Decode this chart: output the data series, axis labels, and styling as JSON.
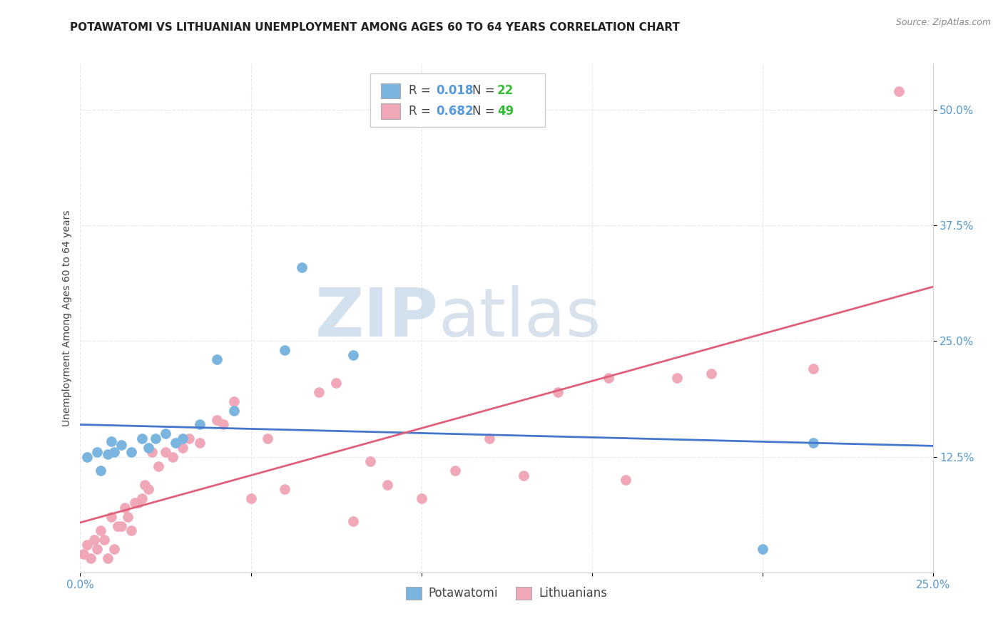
{
  "title": "POTAWATOMI VS LITHUANIAN UNEMPLOYMENT AMONG AGES 60 TO 64 YEARS CORRELATION CHART",
  "source": "Source: ZipAtlas.com",
  "ylabel": "Unemployment Among Ages 60 to 64 years",
  "xlim": [
    0.0,
    0.25
  ],
  "ylim": [
    0.0,
    0.55
  ],
  "xticks": [
    0.0,
    0.05,
    0.1,
    0.15,
    0.2,
    0.25
  ],
  "xticklabels": [
    "0.0%",
    "",
    "",
    "",
    "",
    "25.0%"
  ],
  "yticks_right": [
    0.125,
    0.25,
    0.375,
    0.5
  ],
  "yticklabels_right": [
    "12.5%",
    "25.0%",
    "37.5%",
    "50.0%"
  ],
  "color_potawatomi": "#7ab5e0",
  "color_lithuanians": "#f0a8b8",
  "color_line_potawatomi": "#4477cc",
  "color_line_lithuanians": "#e0607a",
  "color_r_text": "#5599dd",
  "color_n_text": "#33bb33",
  "watermark_zip_color": "#b0c8e0",
  "watermark_atlas_color": "#a8c0d8",
  "grid_color": "#e8e8e8",
  "background_color": "#ffffff",
  "title_fontsize": 11,
  "axis_label_fontsize": 10,
  "tick_fontsize": 11,
  "legend_fontsize": 12,
  "potawatomi_x": [
    0.002,
    0.005,
    0.006,
    0.008,
    0.009,
    0.01,
    0.012,
    0.015,
    0.018,
    0.02,
    0.022,
    0.025,
    0.028,
    0.03,
    0.035,
    0.04,
    0.045,
    0.06,
    0.065,
    0.08,
    0.2,
    0.215
  ],
  "potawatomi_y": [
    0.125,
    0.13,
    0.11,
    0.128,
    0.142,
    0.13,
    0.138,
    0.13,
    0.145,
    0.135,
    0.145,
    0.15,
    0.14,
    0.145,
    0.16,
    0.23,
    0.175,
    0.24,
    0.33,
    0.235,
    0.025,
    0.14
  ],
  "lithuanians_x": [
    0.001,
    0.002,
    0.003,
    0.004,
    0.005,
    0.006,
    0.007,
    0.008,
    0.009,
    0.01,
    0.011,
    0.012,
    0.013,
    0.014,
    0.015,
    0.016,
    0.017,
    0.018,
    0.019,
    0.02,
    0.021,
    0.023,
    0.025,
    0.027,
    0.03,
    0.032,
    0.035,
    0.04,
    0.042,
    0.045,
    0.05,
    0.055,
    0.06,
    0.07,
    0.075,
    0.08,
    0.085,
    0.09,
    0.1,
    0.11,
    0.12,
    0.13,
    0.14,
    0.155,
    0.16,
    0.175,
    0.185,
    0.215,
    0.24
  ],
  "lithuanians_y": [
    0.02,
    0.03,
    0.015,
    0.035,
    0.025,
    0.045,
    0.035,
    0.015,
    0.06,
    0.025,
    0.05,
    0.05,
    0.07,
    0.06,
    0.045,
    0.075,
    0.075,
    0.08,
    0.095,
    0.09,
    0.13,
    0.115,
    0.13,
    0.125,
    0.135,
    0.145,
    0.14,
    0.165,
    0.16,
    0.185,
    0.08,
    0.145,
    0.09,
    0.195,
    0.205,
    0.055,
    0.12,
    0.095,
    0.08,
    0.11,
    0.145,
    0.105,
    0.195,
    0.21,
    0.1,
    0.21,
    0.215,
    0.22,
    0.52
  ]
}
